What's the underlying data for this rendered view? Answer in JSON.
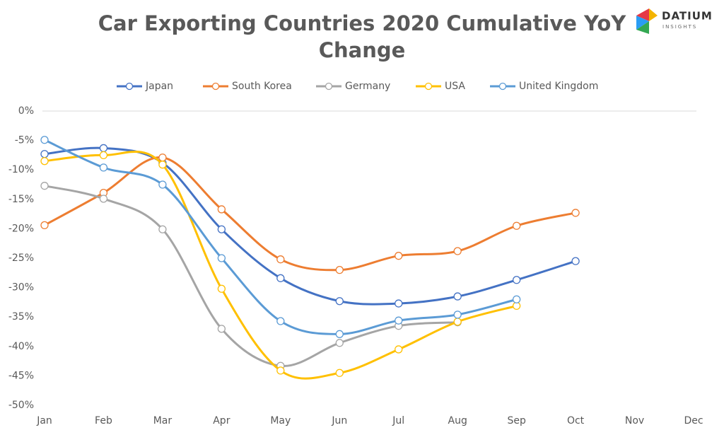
{
  "logo": {
    "name": "DATIUM",
    "tagline": "INSIGHTS"
  },
  "chart_data": {
    "type": "line",
    "title": "Car Exporting Countries 2020 Cumulative YoY Change",
    "categories": [
      "Jan",
      "Feb",
      "Mar",
      "Apr",
      "May",
      "Jun",
      "Jul",
      "Aug",
      "Sep",
      "Oct",
      "Nov",
      "Dec"
    ],
    "series": [
      {
        "name": "Japan",
        "color": "#4472c4",
        "values": [
          -7.3,
          -6.3,
          -8.8,
          -20.1,
          -28.4,
          -32.3,
          -32.7,
          -31.5,
          -28.7,
          -25.5,
          null,
          null
        ]
      },
      {
        "name": "South Korea",
        "color": "#ed7d31",
        "values": [
          -19.4,
          -13.9,
          -7.9,
          -16.7,
          -25.2,
          -27.0,
          -24.6,
          -23.8,
          -19.5,
          -17.3,
          null,
          null
        ]
      },
      {
        "name": "Germany",
        "color": "#a5a5a5",
        "values": [
          -12.7,
          -14.9,
          -20.1,
          -37.0,
          -43.3,
          -39.4,
          -36.5,
          -35.9,
          null,
          null,
          null,
          null
        ]
      },
      {
        "name": "USA",
        "color": "#ffc000",
        "values": [
          -8.5,
          -7.5,
          -9.1,
          -30.2,
          -44.1,
          -44.5,
          -40.5,
          -35.8,
          -33.1,
          null,
          null,
          null
        ]
      },
      {
        "name": "United Kingdom",
        "color": "#5b9bd5",
        "values": [
          -4.9,
          -9.6,
          -12.5,
          -25.0,
          -35.7,
          -37.9,
          -35.6,
          -34.6,
          -32.0,
          null,
          null,
          null
        ]
      }
    ],
    "ylim": [
      -50,
      0
    ],
    "yticks": [
      {
        "value": 0,
        "label": "0%"
      },
      {
        "value": -5,
        "label": "-5%"
      },
      {
        "value": -10,
        "label": "-10%"
      },
      {
        "value": -15,
        "label": "-15%"
      },
      {
        "value": -20,
        "label": "-20%"
      },
      {
        "value": -25,
        "label": "-25%"
      },
      {
        "value": -30,
        "label": "-30%"
      },
      {
        "value": -35,
        "label": "-35%"
      },
      {
        "value": -40,
        "label": "-40%"
      },
      {
        "value": -45,
        "label": "-45%"
      },
      {
        "value": -50,
        "label": "-50%"
      }
    ],
    "legend": "top"
  }
}
